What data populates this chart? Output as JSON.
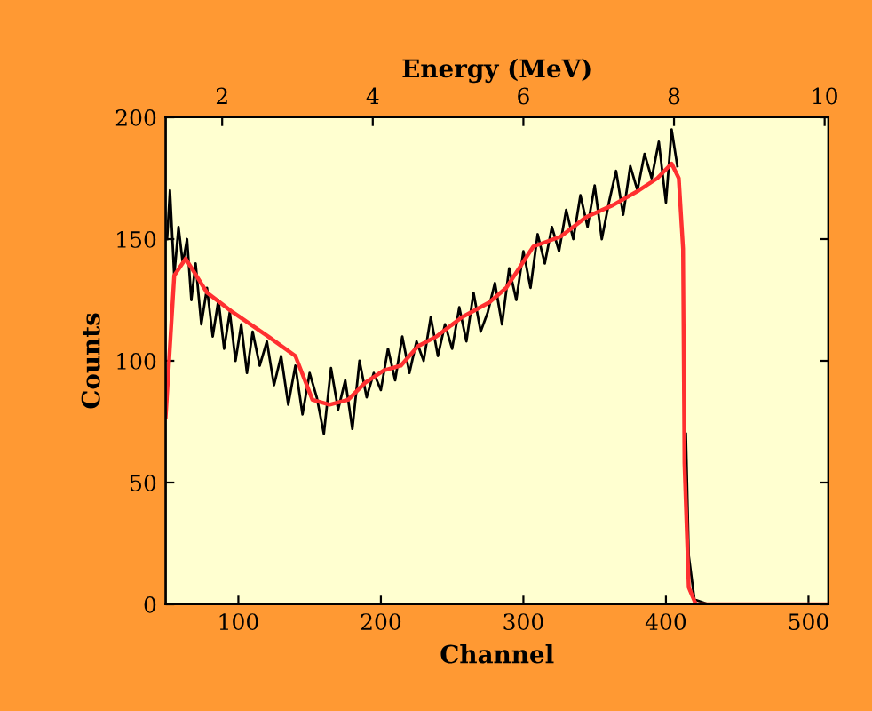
{
  "chart_data": {
    "type": "line",
    "xlabel": "Channel",
    "ylabel": "Counts",
    "x2label": "Energy (MeV)",
    "xlim": [
      49,
      514
    ],
    "xticks": [
      100,
      200,
      300,
      400,
      500
    ],
    "ylim": [
      0,
      200
    ],
    "yticks": [
      0,
      50,
      100,
      150,
      200
    ],
    "x2lim": [
      1.25,
      10.05
    ],
    "x2ticks": [
      2,
      4,
      6,
      8,
      10
    ],
    "grid": false,
    "legend": false,
    "marker": "none",
    "line_style": "solid",
    "series": [
      {
        "color": "#000000",
        "x": [
          50,
          52,
          55,
          58,
          61,
          64,
          67,
          70,
          74,
          78,
          82,
          86,
          90,
          94,
          98,
          102,
          106,
          110,
          115,
          120,
          125,
          130,
          135,
          140,
          145,
          150,
          155,
          160,
          165,
          170,
          175,
          180,
          185,
          190,
          195,
          200,
          205,
          210,
          215,
          220,
          225,
          230,
          235,
          240,
          245,
          250,
          255,
          260,
          265,
          270,
          275,
          280,
          285,
          290,
          295,
          300,
          305,
          310,
          315,
          320,
          325,
          330,
          335,
          340,
          345,
          350,
          355,
          360,
          365,
          370,
          375,
          380,
          385,
          390,
          395,
          400,
          404,
          408,
          410,
          412,
          414,
          416,
          420,
          430
        ],
        "values": [
          150,
          170,
          135,
          155,
          140,
          150,
          125,
          140,
          115,
          130,
          110,
          125,
          105,
          120,
          100,
          115,
          95,
          112,
          98,
          108,
          90,
          102,
          82,
          98,
          78,
          95,
          85,
          70,
          97,
          80,
          92,
          72,
          100,
          85,
          95,
          88,
          105,
          92,
          110,
          95,
          108,
          100,
          118,
          102,
          115,
          105,
          122,
          108,
          128,
          112,
          120,
          132,
          115,
          138,
          125,
          145,
          130,
          152,
          140,
          155,
          145,
          162,
          150,
          168,
          155,
          172,
          150,
          165,
          178,
          160,
          180,
          170,
          185,
          175,
          190,
          165,
          195,
          180,
          null,
          null,
          70,
          20,
          2,
          0
        ]
      },
      {
        "color": "#ff3030",
        "x": [
          49,
          55,
          63,
          78,
          96,
          121,
          140,
          152,
          164,
          177,
          189,
          202,
          214,
          226,
          239,
          257,
          276,
          288,
          307,
          326,
          344,
          363,
          381,
          394,
          404,
          409,
          412,
          413,
          416,
          421,
          514
        ],
        "values": [
          77,
          135,
          142,
          128,
          120,
          110,
          102,
          84,
          82,
          84,
          91,
          96,
          98,
          106,
          110,
          118,
          124,
          130,
          147,
          151,
          159,
          164,
          170,
          175,
          181,
          175,
          146,
          58,
          7,
          0,
          0
        ]
      }
    ]
  }
}
